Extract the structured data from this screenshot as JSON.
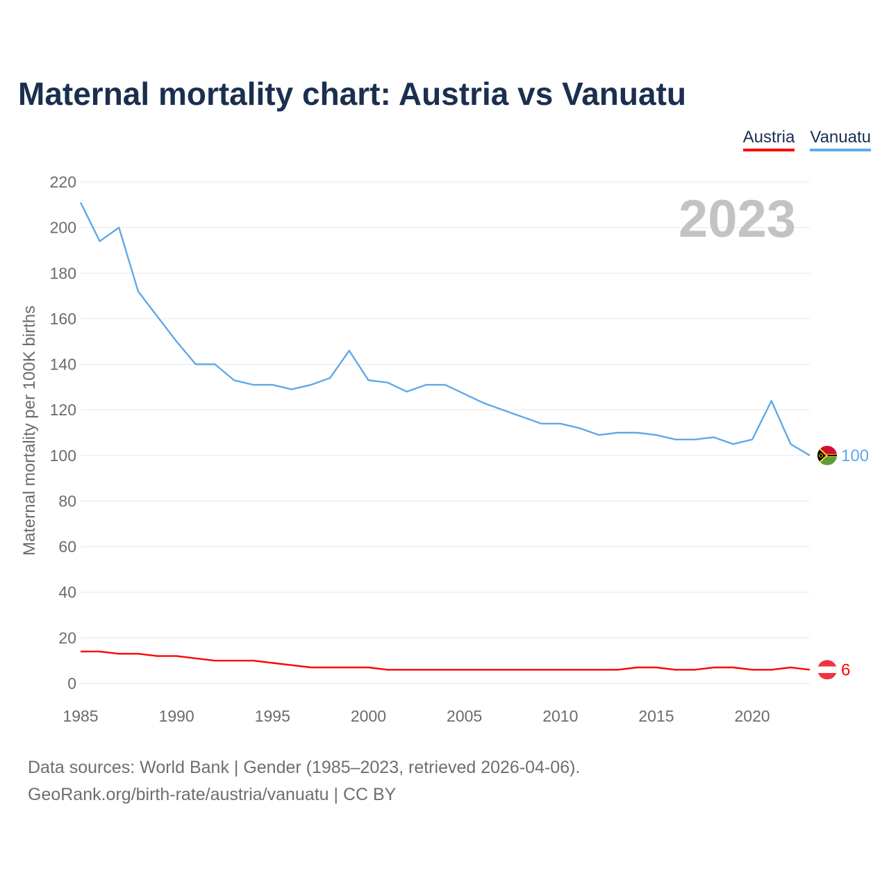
{
  "header": {
    "title": "Maternal mortality chart: Austria vs Vanuatu"
  },
  "legend": {
    "items": [
      {
        "label": "Austria",
        "color": "#ff0000"
      },
      {
        "label": "Vanuatu",
        "color": "#5fa8e8"
      }
    ]
  },
  "footer": {
    "line1": "Data sources: World Bank | Gender (1985–2023, retrieved 2026-04-06).",
    "line2": "GeoRank.org/birth-rate/austria/vanuatu | CC BY"
  },
  "chart_data": {
    "type": "line",
    "title": "Maternal mortality chart: Austria vs Vanuatu",
    "xlabel": "",
    "ylabel": "Maternal mortality per 100K births",
    "year_label": "2023",
    "xlim": [
      1985,
      2023
    ],
    "ylim": [
      0,
      220
    ],
    "x_ticks": [
      1985,
      1990,
      1995,
      2000,
      2005,
      2010,
      2015,
      2020
    ],
    "y_ticks": [
      0,
      20,
      40,
      60,
      80,
      100,
      120,
      140,
      160,
      180,
      200,
      220
    ],
    "grid": true,
    "legend_position": "top-right",
    "x": [
      1985,
      1986,
      1987,
      1988,
      1989,
      1990,
      1991,
      1992,
      1993,
      1994,
      1995,
      1996,
      1997,
      1998,
      1999,
      2000,
      2001,
      2002,
      2003,
      2004,
      2005,
      2006,
      2007,
      2008,
      2009,
      2010,
      2011,
      2012,
      2013,
      2014,
      2015,
      2016,
      2017,
      2018,
      2019,
      2020,
      2021,
      2022,
      2023
    ],
    "series": [
      {
        "name": "Vanuatu",
        "color": "#5fa8e8",
        "end_label": "100",
        "values": [
          211,
          194,
          200,
          172,
          161,
          150,
          140,
          140,
          133,
          131,
          131,
          129,
          131,
          134,
          146,
          133,
          132,
          128,
          131,
          131,
          127,
          123,
          120,
          117,
          114,
          114,
          112,
          109,
          110,
          110,
          109,
          107,
          107,
          108,
          105,
          107,
          124,
          105,
          100
        ]
      },
      {
        "name": "Austria",
        "color": "#ff0000",
        "end_label": "6",
        "values": [
          14,
          14,
          13,
          13,
          12,
          12,
          11,
          10,
          10,
          10,
          9,
          8,
          7,
          7,
          7,
          7,
          6,
          6,
          6,
          6,
          6,
          6,
          6,
          6,
          6,
          6,
          6,
          6,
          6,
          7,
          7,
          6,
          6,
          7,
          7,
          6,
          6,
          7,
          6
        ]
      }
    ]
  }
}
